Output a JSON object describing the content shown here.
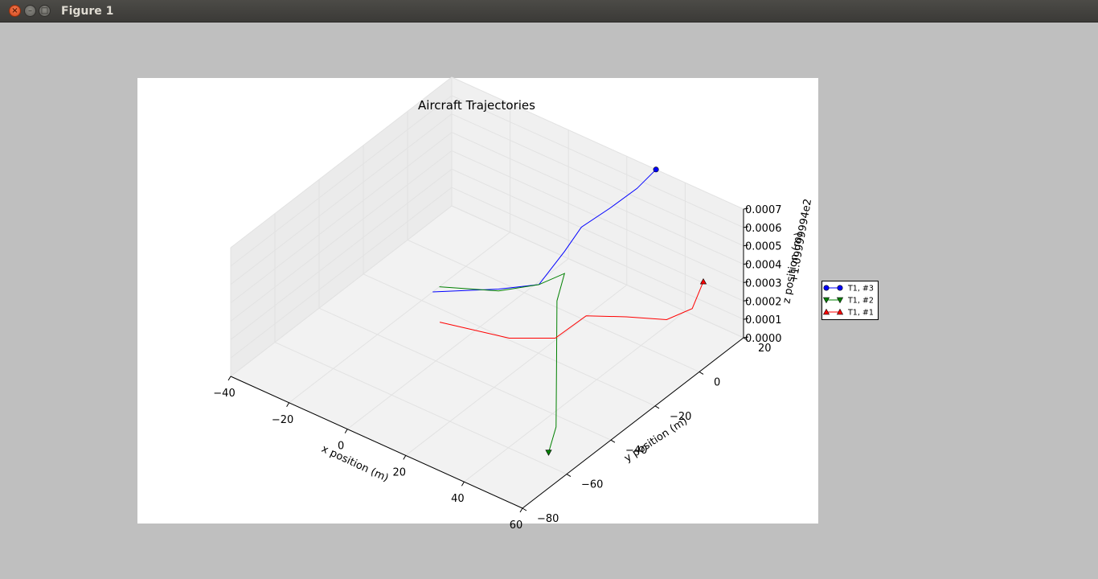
{
  "window": {
    "title": "Figure 1",
    "close_glyph": "×",
    "minimize_glyph": "–",
    "maximize_glyph": "□"
  },
  "chart_data": {
    "type": "line3d",
    "title": "Aircraft Trajectories",
    "xlabel": "x position (m)",
    "ylabel": "y position (m)",
    "zlabel": "z position (m)",
    "z_offset_label": "+1.09999994e2",
    "xlim": [
      -40,
      60
    ],
    "ylim": [
      -80,
      20
    ],
    "zlim": [
      0.0,
      0.0007
    ],
    "x_ticks": [
      "−40",
      "−20",
      "0",
      "20",
      "40",
      "60"
    ],
    "y_ticks": [
      "−80",
      "−60",
      "−40",
      "−20",
      "0",
      "20"
    ],
    "z_ticks": [
      "0.0000",
      "0.0001",
      "0.0002",
      "0.0003",
      "0.0004",
      "0.0005",
      "0.0006",
      "0.0007"
    ],
    "grid": true,
    "legend_position": "right",
    "series": [
      {
        "name": "T1, #3",
        "color": "#0000ff",
        "marker": "circle",
        "points": [
          [
            -20,
            -15,
            0.0
          ],
          [
            -5,
            -5,
            3e-05
          ],
          [
            5,
            0,
            8e-05
          ],
          [
            10,
            5,
            0.00025
          ],
          [
            12,
            10,
            0.00035
          ],
          [
            18,
            15,
            0.00045
          ],
          [
            25,
            18,
            0.00058
          ],
          [
            30,
            20,
            0.0007
          ]
        ]
      },
      {
        "name": "T1, #2",
        "color": "#008000",
        "marker": "triangle-down",
        "points": [
          [
            -20,
            -12,
            0.0
          ],
          [
            -5,
            -5,
            2e-05
          ],
          [
            5,
            0,
            8e-05
          ],
          [
            10,
            5,
            0.00013
          ],
          [
            15,
            -5,
            0.00011
          ],
          [
            30,
            -25,
            6e-05
          ],
          [
            45,
            -45,
            1e-05
          ],
          [
            50,
            -55,
            0.0
          ]
        ]
      },
      {
        "name": "T1, #1",
        "color": "#ff0000",
        "marker": "triangle-up",
        "points": [
          [
            -10,
            -25,
            0.0
          ],
          [
            10,
            -20,
            1e-05
          ],
          [
            22,
            -15,
            5e-05
          ],
          [
            25,
            -5,
            0.0001
          ],
          [
            35,
            0,
            0.00012
          ],
          [
            45,
            5,
            0.00013
          ],
          [
            50,
            10,
            0.00018
          ],
          [
            50,
            15,
            0.00028
          ]
        ]
      }
    ]
  }
}
